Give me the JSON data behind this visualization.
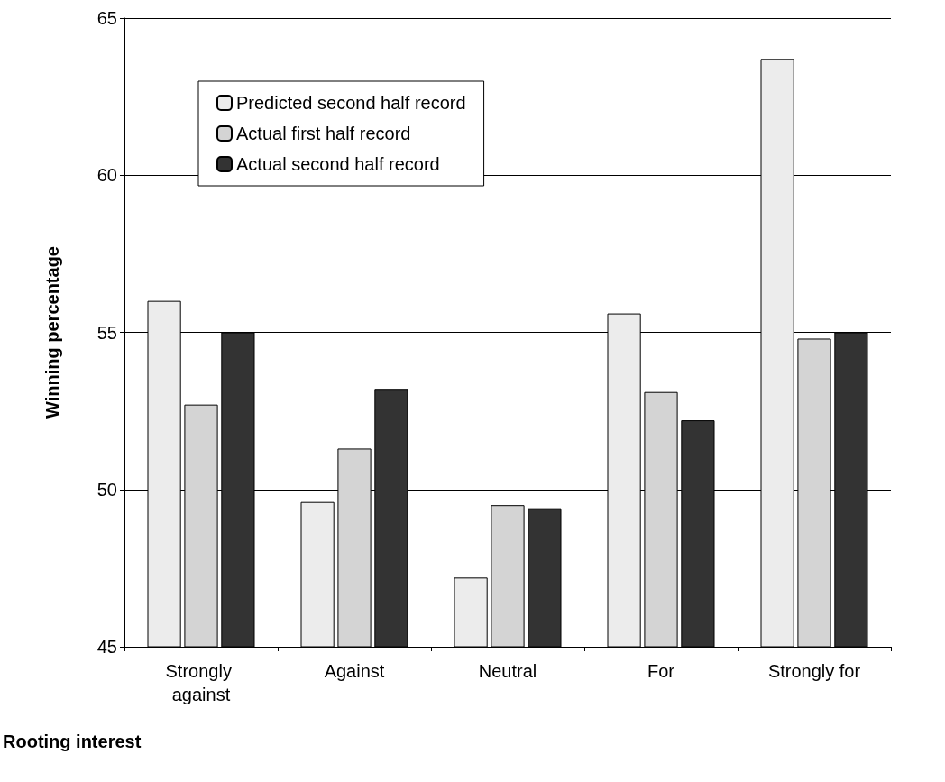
{
  "chart_data": {
    "type": "bar",
    "xlabel": "Rooting interest",
    "ylabel": "Winning percentage",
    "categories": [
      "Strongly against",
      "Against",
      "Neutral",
      "For",
      "Strongly for"
    ],
    "series": [
      {
        "name": "Predicted second half record",
        "color": "#ececec",
        "values": [
          56,
          49.6,
          47.2,
          55.6,
          63.7
        ]
      },
      {
        "name": "Actual first half record",
        "color": "#d4d4d4",
        "values": [
          52.7,
          51.3,
          49.5,
          53.1,
          54.8
        ]
      },
      {
        "name": "Actual second half record",
        "color": "#333333",
        "values": [
          55,
          53.2,
          49.4,
          52.2,
          55
        ]
      }
    ],
    "ylim": [
      45,
      65
    ],
    "yticks": [
      45,
      50,
      55,
      60,
      65
    ],
    "grid": "y",
    "legend": "top left"
  }
}
